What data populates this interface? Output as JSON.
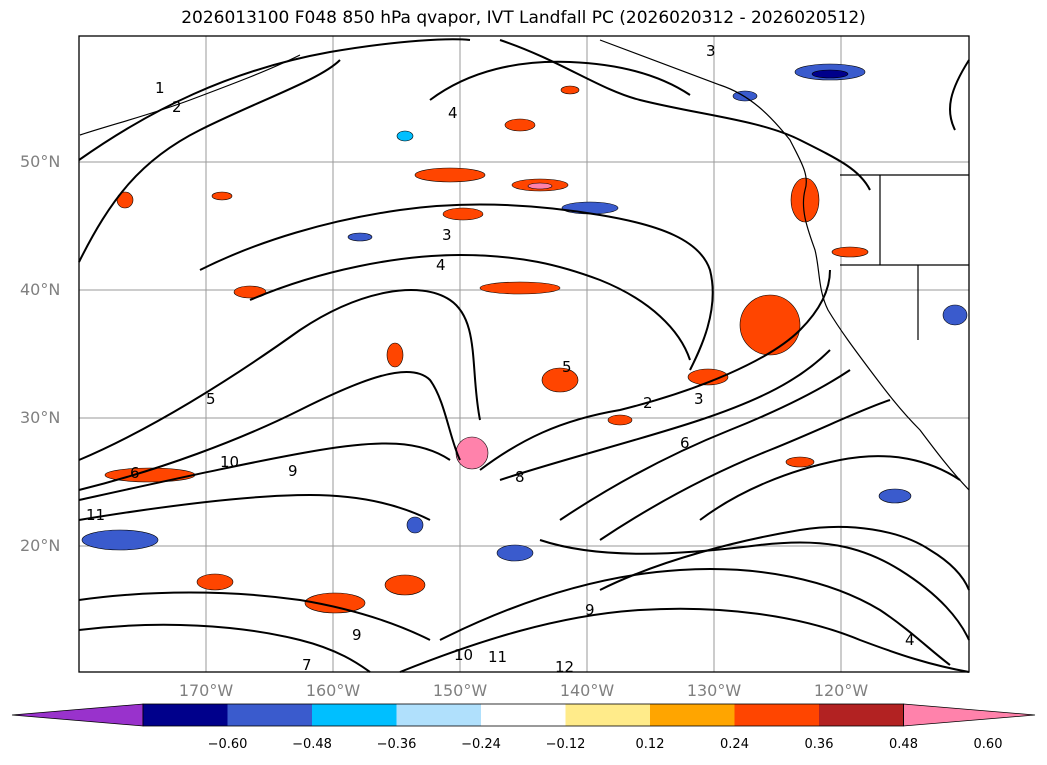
{
  "title": "2026013100 F048 850 hPa qvapor, IVT Landfall PC (2026020312 - 2026020512)",
  "lat_labels": [
    "50°N",
    "40°N",
    "30°N",
    "20°N"
  ],
  "lon_labels": [
    "170°W",
    "160°W",
    "150°W",
    "140°W",
    "130°W",
    "120°W"
  ],
  "colorbar": {
    "colors": [
      "#9932cc",
      "#00008b",
      "#3a5bcd",
      "#00bfff",
      "#b0e0fc",
      "#ffffff",
      "#ffeb8a",
      "#ffa500",
      "#ff4500",
      "#b22222",
      "#ff82ab"
    ],
    "ticks": [
      "−0.60",
      "−0.48",
      "−0.36",
      "−0.24",
      "−0.12",
      "0.12",
      "0.24",
      "0.36",
      "0.48",
      "0.60"
    ]
  },
  "contour_labels": [
    "1",
    "2",
    "3",
    "4",
    "5",
    "6",
    "7",
    "8",
    "9",
    "10",
    "11",
    "12"
  ]
}
